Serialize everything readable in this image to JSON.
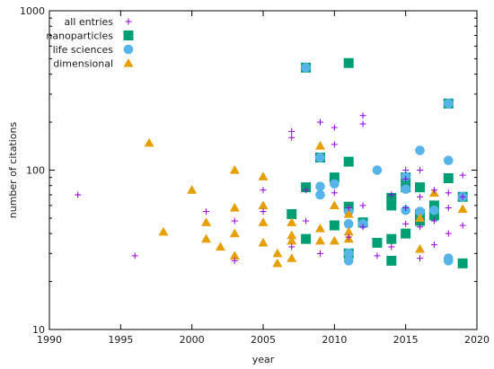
{
  "chart_data": {
    "type": "scatter",
    "title": "",
    "xlabel": "year",
    "ylabel": "number of citations",
    "xlim": [
      1990,
      2020
    ],
    "ylim": [
      10,
      1000
    ],
    "yscale": "log",
    "x_ticks": [
      1990,
      1995,
      2000,
      2005,
      2010,
      2015,
      2020
    ],
    "x_tick_labels": [
      "1990",
      "1995",
      "2000",
      "2005",
      "2010",
      "2015",
      "2020"
    ],
    "y_ticks": [
      10,
      100,
      1000
    ],
    "y_tick_labels": [
      "10",
      "100",
      "1000"
    ],
    "grid": false,
    "legend": "top-left",
    "series": [
      {
        "name": "all entries",
        "marker": "plus",
        "color": "#9400d3",
        "points": [
          [
            1992,
            70
          ],
          [
            1996,
            29
          ],
          [
            2001,
            55
          ],
          [
            2003,
            27
          ],
          [
            2003,
            48
          ],
          [
            2005,
            75
          ],
          [
            2005,
            55
          ],
          [
            2007,
            175
          ],
          [
            2007,
            160
          ],
          [
            2007,
            33
          ],
          [
            2008,
            48
          ],
          [
            2008,
            75
          ],
          [
            2009,
            200
          ],
          [
            2009,
            30
          ],
          [
            2010,
            185
          ],
          [
            2010,
            145
          ],
          [
            2010,
            72
          ],
          [
            2011,
            58
          ],
          [
            2011,
            38
          ],
          [
            2012,
            220
          ],
          [
            2012,
            195
          ],
          [
            2012,
            60
          ],
          [
            2012,
            44
          ],
          [
            2013,
            29
          ],
          [
            2014,
            70
          ],
          [
            2014,
            33
          ],
          [
            2015,
            100
          ],
          [
            2015,
            88
          ],
          [
            2015,
            58
          ],
          [
            2015,
            46
          ],
          [
            2016,
            100
          ],
          [
            2016,
            68
          ],
          [
            2016,
            44
          ],
          [
            2016,
            28
          ],
          [
            2017,
            75
          ],
          [
            2017,
            48
          ],
          [
            2017,
            34
          ],
          [
            2018,
            72
          ],
          [
            2018,
            58
          ],
          [
            2018,
            40
          ],
          [
            2019,
            93
          ],
          [
            2019,
            68
          ],
          [
            2019,
            45
          ]
        ]
      },
      {
        "name": "nanoparticles",
        "marker": "square",
        "color": "#009e73",
        "points": [
          [
            2007,
            53
          ],
          [
            2008,
            440
          ],
          [
            2008,
            78
          ],
          [
            2008,
            37
          ],
          [
            2009,
            120
          ],
          [
            2010,
            90
          ],
          [
            2010,
            45
          ],
          [
            2011,
            470
          ],
          [
            2011,
            113
          ],
          [
            2011,
            59
          ],
          [
            2011,
            30
          ],
          [
            2012,
            47
          ],
          [
            2013,
            35
          ],
          [
            2014,
            67
          ],
          [
            2014,
            60
          ],
          [
            2014,
            37
          ],
          [
            2014,
            27
          ],
          [
            2015,
            90
          ],
          [
            2015,
            78
          ],
          [
            2015,
            40
          ],
          [
            2016,
            78
          ],
          [
            2016,
            53
          ],
          [
            2016,
            48
          ],
          [
            2017,
            60
          ],
          [
            2017,
            52
          ],
          [
            2018,
            262
          ],
          [
            2018,
            89
          ],
          [
            2019,
            68
          ],
          [
            2019,
            26
          ]
        ]
      },
      {
        "name": "life sciences",
        "marker": "circle",
        "color": "#56b4e9",
        "points": [
          [
            2008,
            440
          ],
          [
            2009,
            120
          ],
          [
            2009,
            79
          ],
          [
            2009,
            70
          ],
          [
            2010,
            82
          ],
          [
            2011,
            55
          ],
          [
            2011,
            46
          ],
          [
            2011,
            30
          ],
          [
            2011,
            27
          ],
          [
            2012,
            46
          ],
          [
            2013,
            100
          ],
          [
            2015,
            91
          ],
          [
            2015,
            76
          ],
          [
            2015,
            56
          ],
          [
            2016,
            133
          ],
          [
            2016,
            55
          ],
          [
            2017,
            56
          ],
          [
            2018,
            262
          ],
          [
            2018,
            115
          ],
          [
            2018,
            28
          ],
          [
            2018,
            27
          ],
          [
            2019,
            68
          ]
        ]
      },
      {
        "name": "dimensional",
        "marker": "triangle",
        "color": "#e69f00",
        "points": [
          [
            1997,
            148
          ],
          [
            1998,
            41
          ],
          [
            2000,
            75
          ],
          [
            2001,
            47
          ],
          [
            2001,
            37
          ],
          [
            2002,
            33
          ],
          [
            2003,
            100
          ],
          [
            2003,
            58
          ],
          [
            2003,
            40
          ],
          [
            2003,
            29
          ],
          [
            2005,
            91
          ],
          [
            2005,
            60
          ],
          [
            2005,
            47
          ],
          [
            2005,
            35
          ],
          [
            2006,
            30
          ],
          [
            2006,
            26
          ],
          [
            2007,
            47
          ],
          [
            2007,
            39
          ],
          [
            2007,
            36
          ],
          [
            2007,
            28
          ],
          [
            2009,
            142
          ],
          [
            2009,
            43
          ],
          [
            2009,
            36
          ],
          [
            2010,
            60
          ],
          [
            2010,
            36
          ],
          [
            2011,
            53
          ],
          [
            2011,
            41
          ],
          [
            2011,
            37
          ],
          [
            2016,
            50
          ],
          [
            2016,
            32
          ],
          [
            2017,
            72
          ],
          [
            2019,
            57
          ]
        ]
      }
    ]
  }
}
